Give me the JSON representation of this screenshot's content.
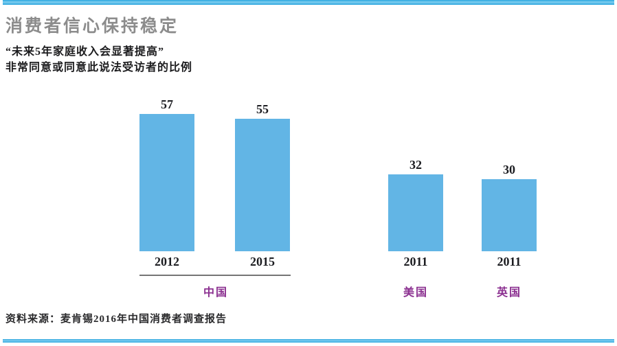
{
  "page": {
    "title": "消费者信心保持稳定",
    "subtitle_line1": "“未来5年家庭收入会显著提高”",
    "subtitle_line2": "非常同意或同意此说法受访者的比例",
    "source": "资料来源：麦肯锡2016年中国消费者调查报告"
  },
  "chart_data": {
    "type": "bar",
    "title": "消费者信心保持稳定",
    "subtitle": "“未来5年家庭收入会显著提高”非常同意或同意此说法受访者的比例",
    "categories": [
      "2012",
      "2015",
      "2011",
      "2011"
    ],
    "values": [
      57,
      55,
      32,
      30
    ],
    "bars": [
      {
        "year": "2012",
        "value": 57,
        "group": "中国"
      },
      {
        "year": "2015",
        "value": 55,
        "group": "中国"
      },
      {
        "year": "2011",
        "value": 32,
        "group": "美国"
      },
      {
        "year": "2011",
        "value": 30,
        "group": "英国"
      }
    ],
    "group_labels": [
      {
        "label": "中国"
      },
      {
        "label": "美国"
      },
      {
        "label": "英国"
      }
    ],
    "ylim": [
      0,
      60
    ],
    "grid": false,
    "legend": false,
    "axis_shown": false,
    "bar_color": "#62b5e5",
    "group_label_color": "#8b3090",
    "source": "资料来源：麦肯锡2016年中国消费者调查报告"
  },
  "colors": {
    "accent_rule_blue": "#2aa5de",
    "bar_blue": "#62b5e5",
    "purple": "#8b3090",
    "title_gray": "#8c8c8c"
  }
}
